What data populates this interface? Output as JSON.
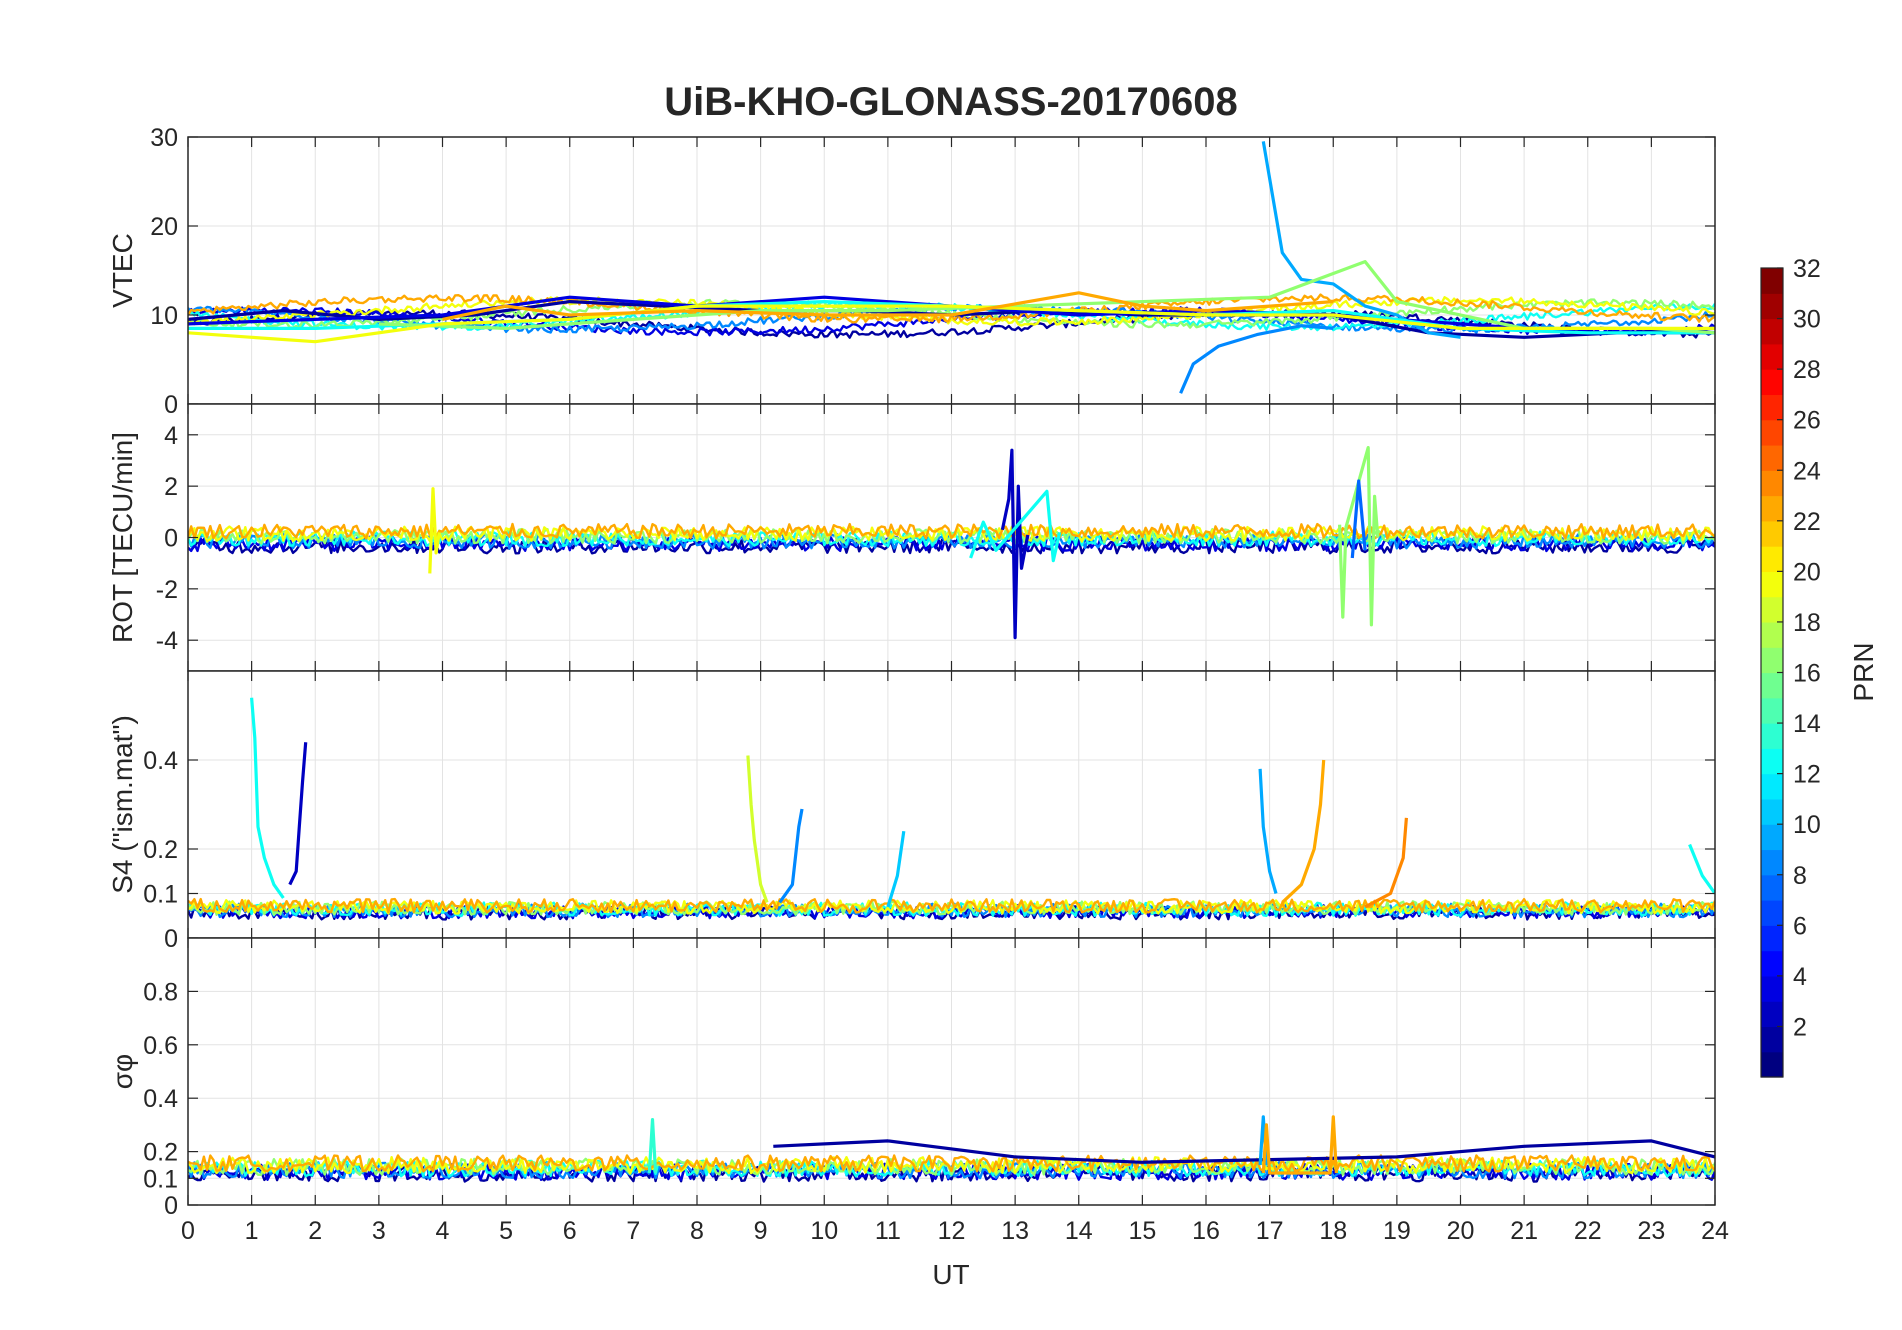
{
  "chart_data": {
    "type": "line",
    "title": "UiB-KHO-GLONASS-20170608",
    "xlabel": "UT",
    "xlim": [
      0,
      24
    ],
    "x_ticks": [
      "0",
      "1",
      "2",
      "3",
      "4",
      "5",
      "6",
      "7",
      "8",
      "9",
      "10",
      "11",
      "12",
      "13",
      "14",
      "15",
      "16",
      "17",
      "18",
      "19",
      "20",
      "21",
      "22",
      "23",
      "24"
    ],
    "grid": true,
    "colormap": "jet",
    "colorbar": {
      "label": "PRN",
      "range": [
        1,
        32
      ],
      "ticks": [
        "2",
        "4",
        "6",
        "8",
        "10",
        "12",
        "14",
        "16",
        "18",
        "20",
        "22",
        "24",
        "26",
        "28",
        "30",
        "32"
      ]
    },
    "panels": [
      {
        "id": "vtec",
        "ylabel": "VTEC",
        "ylim": [
          0,
          30
        ],
        "y_ticks": [
          "0",
          "10",
          "20",
          "30"
        ],
        "baseline": 10,
        "spread": 0.8,
        "series": [
          {
            "name": "PRN 2",
            "prn": 2,
            "x": [
              0,
              1.5,
              3,
              4.5,
              6,
              7.5,
              9,
              10.5,
              12,
              13.5,
              15,
              16.5,
              18,
              19.5,
              21,
              22.5,
              24
            ],
            "y": [
              9.5,
              10.5,
              9.5,
              10,
              11.5,
              11,
              10.5,
              10.5,
              10,
              10.5,
              10,
              10,
              10,
              8,
              7.5,
              8,
              8.5
            ]
          },
          {
            "name": "PRN 4",
            "prn": 4,
            "x": [
              0,
              2,
              4,
              6,
              8,
              10,
              12,
              14,
              16,
              18,
              20,
              22,
              24
            ],
            "y": [
              9,
              9.5,
              10,
              12,
              11,
              12,
              11,
              10,
              10.5,
              10,
              9,
              8,
              8
            ]
          },
          {
            "name": "PRN 10",
            "prn": 10,
            "x": [
              16.9,
              17.2,
              17.5,
              18,
              18.5,
              19,
              19.5,
              20
            ],
            "y": [
              29.5,
              17,
              14,
              13.5,
              11,
              10,
              8,
              7.5
            ]
          },
          {
            "name": "PRN 10 low",
            "prn": 9,
            "x": [
              15.6,
              15.8,
              16.2,
              16.8,
              17.5,
              18
            ],
            "y": [
              1.2,
              4.5,
              6.5,
              7.8,
              8.8,
              8.5
            ]
          },
          {
            "name": "PRN 13",
            "prn": 13,
            "x": [
              0,
              2,
              4,
              6,
              8,
              10,
              12,
              14,
              16,
              18,
              20,
              22,
              24
            ],
            "y": [
              8.5,
              8.5,
              9,
              9.5,
              11,
              11.5,
              11,
              10.5,
              10,
              10.5,
              8.5,
              8,
              8
            ]
          },
          {
            "name": "PRN 17",
            "prn": 17,
            "x": [
              3,
              5,
              7,
              9,
              11,
              13,
              15,
              17,
              18.5,
              19,
              21,
              23,
              24
            ],
            "y": [
              9,
              8.5,
              9.5,
              10.5,
              10.5,
              11,
              11.5,
              12,
              16,
              11.5,
              8.5,
              8.5,
              8
            ]
          },
          {
            "name": "PRN 20",
            "prn": 20,
            "x": [
              0,
              1,
              2,
              4,
              6,
              8,
              10,
              12,
              14,
              16,
              18,
              20,
              22,
              24
            ],
            "y": [
              8,
              7.5,
              7,
              9,
              9.5,
              11,
              11,
              11,
              10.5,
              10,
              10,
              8.5,
              8.5,
              8.5
            ]
          },
          {
            "name": "PRN 23",
            "prn": 23,
            "x": [
              4,
              5,
              6,
              8,
              10,
              12,
              14,
              15,
              16,
              17,
              18
            ],
            "y": [
              9.5,
              11,
              10,
              10.5,
              10,
              10,
              12.5,
              11,
              10.5,
              11,
              11.5
            ]
          }
        ]
      },
      {
        "id": "rot",
        "ylabel": "ROT [TECU/min]",
        "ylim": [
          -5.2,
          5.2
        ],
        "y_ticks": [
          "-4",
          "-2",
          "0",
          "2",
          "4"
        ],
        "baseline": 0,
        "spread": 0.28,
        "series": [
          {
            "name": "PRN 2 spike",
            "prn": 3,
            "x": [
              12.8,
              12.9,
              12.95,
              13.0,
              13.05,
              13.1,
              13.2
            ],
            "y": [
              0.3,
              1.5,
              3.4,
              -3.9,
              2.0,
              -1.2,
              0.1
            ]
          },
          {
            "name": "PRN 13 spike",
            "prn": 13,
            "x": [
              12.3,
              12.5,
              12.7,
              13.5,
              13.6,
              13.7
            ],
            "y": [
              -0.8,
              0.6,
              -0.5,
              1.8,
              -0.9,
              0.2
            ]
          },
          {
            "name": "PRN 17 spike",
            "prn": 17,
            "x": [
              18.1,
              18.15,
              18.2,
              18.55,
              18.6,
              18.65,
              18.7
            ],
            "y": [
              0.5,
              -3.1,
              0.4,
              3.5,
              -3.4,
              1.6,
              0.0
            ]
          },
          {
            "name": "PRN 20 spike",
            "prn": 20,
            "x": [
              3.8,
              3.85,
              3.9,
              3.95
            ],
            "y": [
              -1.4,
              1.9,
              -0.6,
              0.2
            ]
          },
          {
            "name": "PRN 9 spike",
            "prn": 8,
            "x": [
              18.3,
              18.4,
              18.5
            ],
            "y": [
              -0.8,
              2.2,
              -0.5
            ]
          }
        ]
      },
      {
        "id": "s4",
        "ylabel": "S4 (\"ism.mat\")",
        "ylim": [
          0,
          0.6
        ],
        "y_ticks": [
          "0",
          "0.1",
          "0.2",
          "0.4"
        ],
        "baseline": 0.06,
        "spread": 0.015,
        "series": [
          {
            "name": "PRN 13 arc",
            "prn": 13,
            "x": [
              1.0,
              1.05,
              1.1,
              1.2,
              1.35,
              1.5
            ],
            "y": [
              0.54,
              0.45,
              0.25,
              0.18,
              0.12,
              0.09
            ]
          },
          {
            "name": "PRN 2 arc",
            "prn": 3,
            "x": [
              1.6,
              1.7,
              1.75,
              1.8,
              1.85
            ],
            "y": [
              0.12,
              0.15,
              0.25,
              0.35,
              0.44
            ]
          },
          {
            "name": "PRN 19 arc",
            "prn": 19,
            "x": [
              8.8,
              8.85,
              8.9,
              9.0,
              9.1
            ],
            "y": [
              0.41,
              0.3,
              0.22,
              0.12,
              0.08
            ]
          },
          {
            "name": "PRN 9 arc",
            "prn": 9,
            "x": [
              9.3,
              9.5,
              9.6,
              9.65
            ],
            "y": [
              0.08,
              0.12,
              0.25,
              0.29
            ]
          },
          {
            "name": "PRN 11 arc",
            "prn": 11,
            "x": [
              11.0,
              11.15,
              11.25
            ],
            "y": [
              0.07,
              0.14,
              0.24
            ]
          },
          {
            "name": "PRN 10 arc",
            "prn": 10,
            "x": [
              16.85,
              16.9,
              17.0,
              17.1
            ],
            "y": [
              0.38,
              0.25,
              0.15,
              0.1
            ]
          },
          {
            "name": "PRN 23 arc",
            "prn": 23,
            "x": [
              17.2,
              17.5,
              17.7,
              17.8,
              17.85
            ],
            "y": [
              0.08,
              0.12,
              0.2,
              0.3,
              0.4
            ]
          },
          {
            "name": "PRN 24 arc",
            "prn": 24,
            "x": [
              18.5,
              18.9,
              19.1,
              19.15
            ],
            "y": [
              0.07,
              0.1,
              0.18,
              0.27
            ]
          },
          {
            "name": "PRN 13 end",
            "prn": 13,
            "x": [
              23.6,
              23.8,
              24.0
            ],
            "y": [
              0.21,
              0.14,
              0.1
            ]
          }
        ]
      },
      {
        "id": "sigphi",
        "ylabel": "σφ",
        "ylim": [
          0,
          1
        ],
        "y_ticks": [
          "0",
          "0.1",
          "0.2",
          "0.4",
          "0.6",
          "0.8"
        ],
        "baseline": 0.14,
        "spread": 0.03,
        "series": [
          {
            "name": "PRN 2 band",
            "prn": 2,
            "x": [
              9.2,
              11,
              13,
              15,
              17,
              19,
              21,
              23,
              24
            ],
            "y": [
              0.22,
              0.24,
              0.18,
              0.16,
              0.17,
              0.18,
              0.22,
              0.24,
              0.18
            ]
          },
          {
            "name": "PRN 10 spike",
            "prn": 10,
            "x": [
              16.85,
              16.9,
              16.95
            ],
            "y": [
              0.15,
              0.33,
              0.15
            ]
          },
          {
            "name": "PRN 23 spike",
            "prn": 23,
            "x": [
              16.9,
              16.95,
              17.0,
              17.95,
              18.0,
              18.05
            ],
            "y": [
              0.12,
              0.3,
              0.12,
              0.12,
              0.33,
              0.12
            ]
          },
          {
            "name": "PRN 14 spike",
            "prn": 14,
            "x": [
              7.25,
              7.3,
              7.35
            ],
            "y": [
              0.12,
              0.32,
              0.12
            ]
          }
        ]
      }
    ],
    "noise_prns": [
      2,
      4,
      9,
      13,
      17,
      20,
      23
    ]
  }
}
